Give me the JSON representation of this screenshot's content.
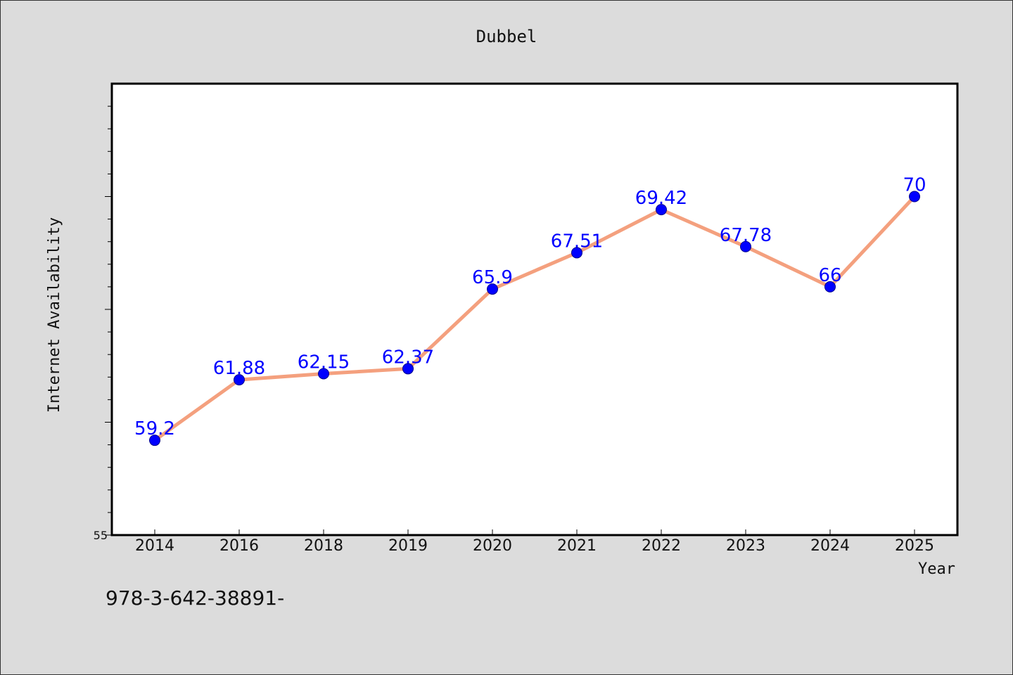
{
  "chart_data": {
    "type": "line",
    "title": "Dubbel",
    "xlabel": "Year",
    "ylabel": "Internet Availability",
    "categories": [
      "2014",
      "2016",
      "2018",
      "2019",
      "2020",
      "2021",
      "2022",
      "2023",
      "2024",
      "2025"
    ],
    "series": [
      {
        "values": [
          59.2,
          61.88,
          62.15,
          62.37,
          65.9,
          67.51,
          69.42,
          67.78,
          66,
          70
        ],
        "data_labels": [
          "59.2",
          "61.88",
          "62.15",
          "62.37",
          "65.9",
          "67.51",
          "69.42",
          "67.78",
          "66",
          "70"
        ]
      }
    ],
    "ylim": [
      55,
      75
    ],
    "y_tick_labels": [
      "55"
    ],
    "grid": false,
    "colors": {
      "line": "#f4a07e",
      "marker": "#0000ff",
      "data_label": "#0000ff",
      "plot_background": "#ffffff",
      "figure_background": "#dcdcdc"
    }
  },
  "footer_text": "978-3-642-38891-"
}
